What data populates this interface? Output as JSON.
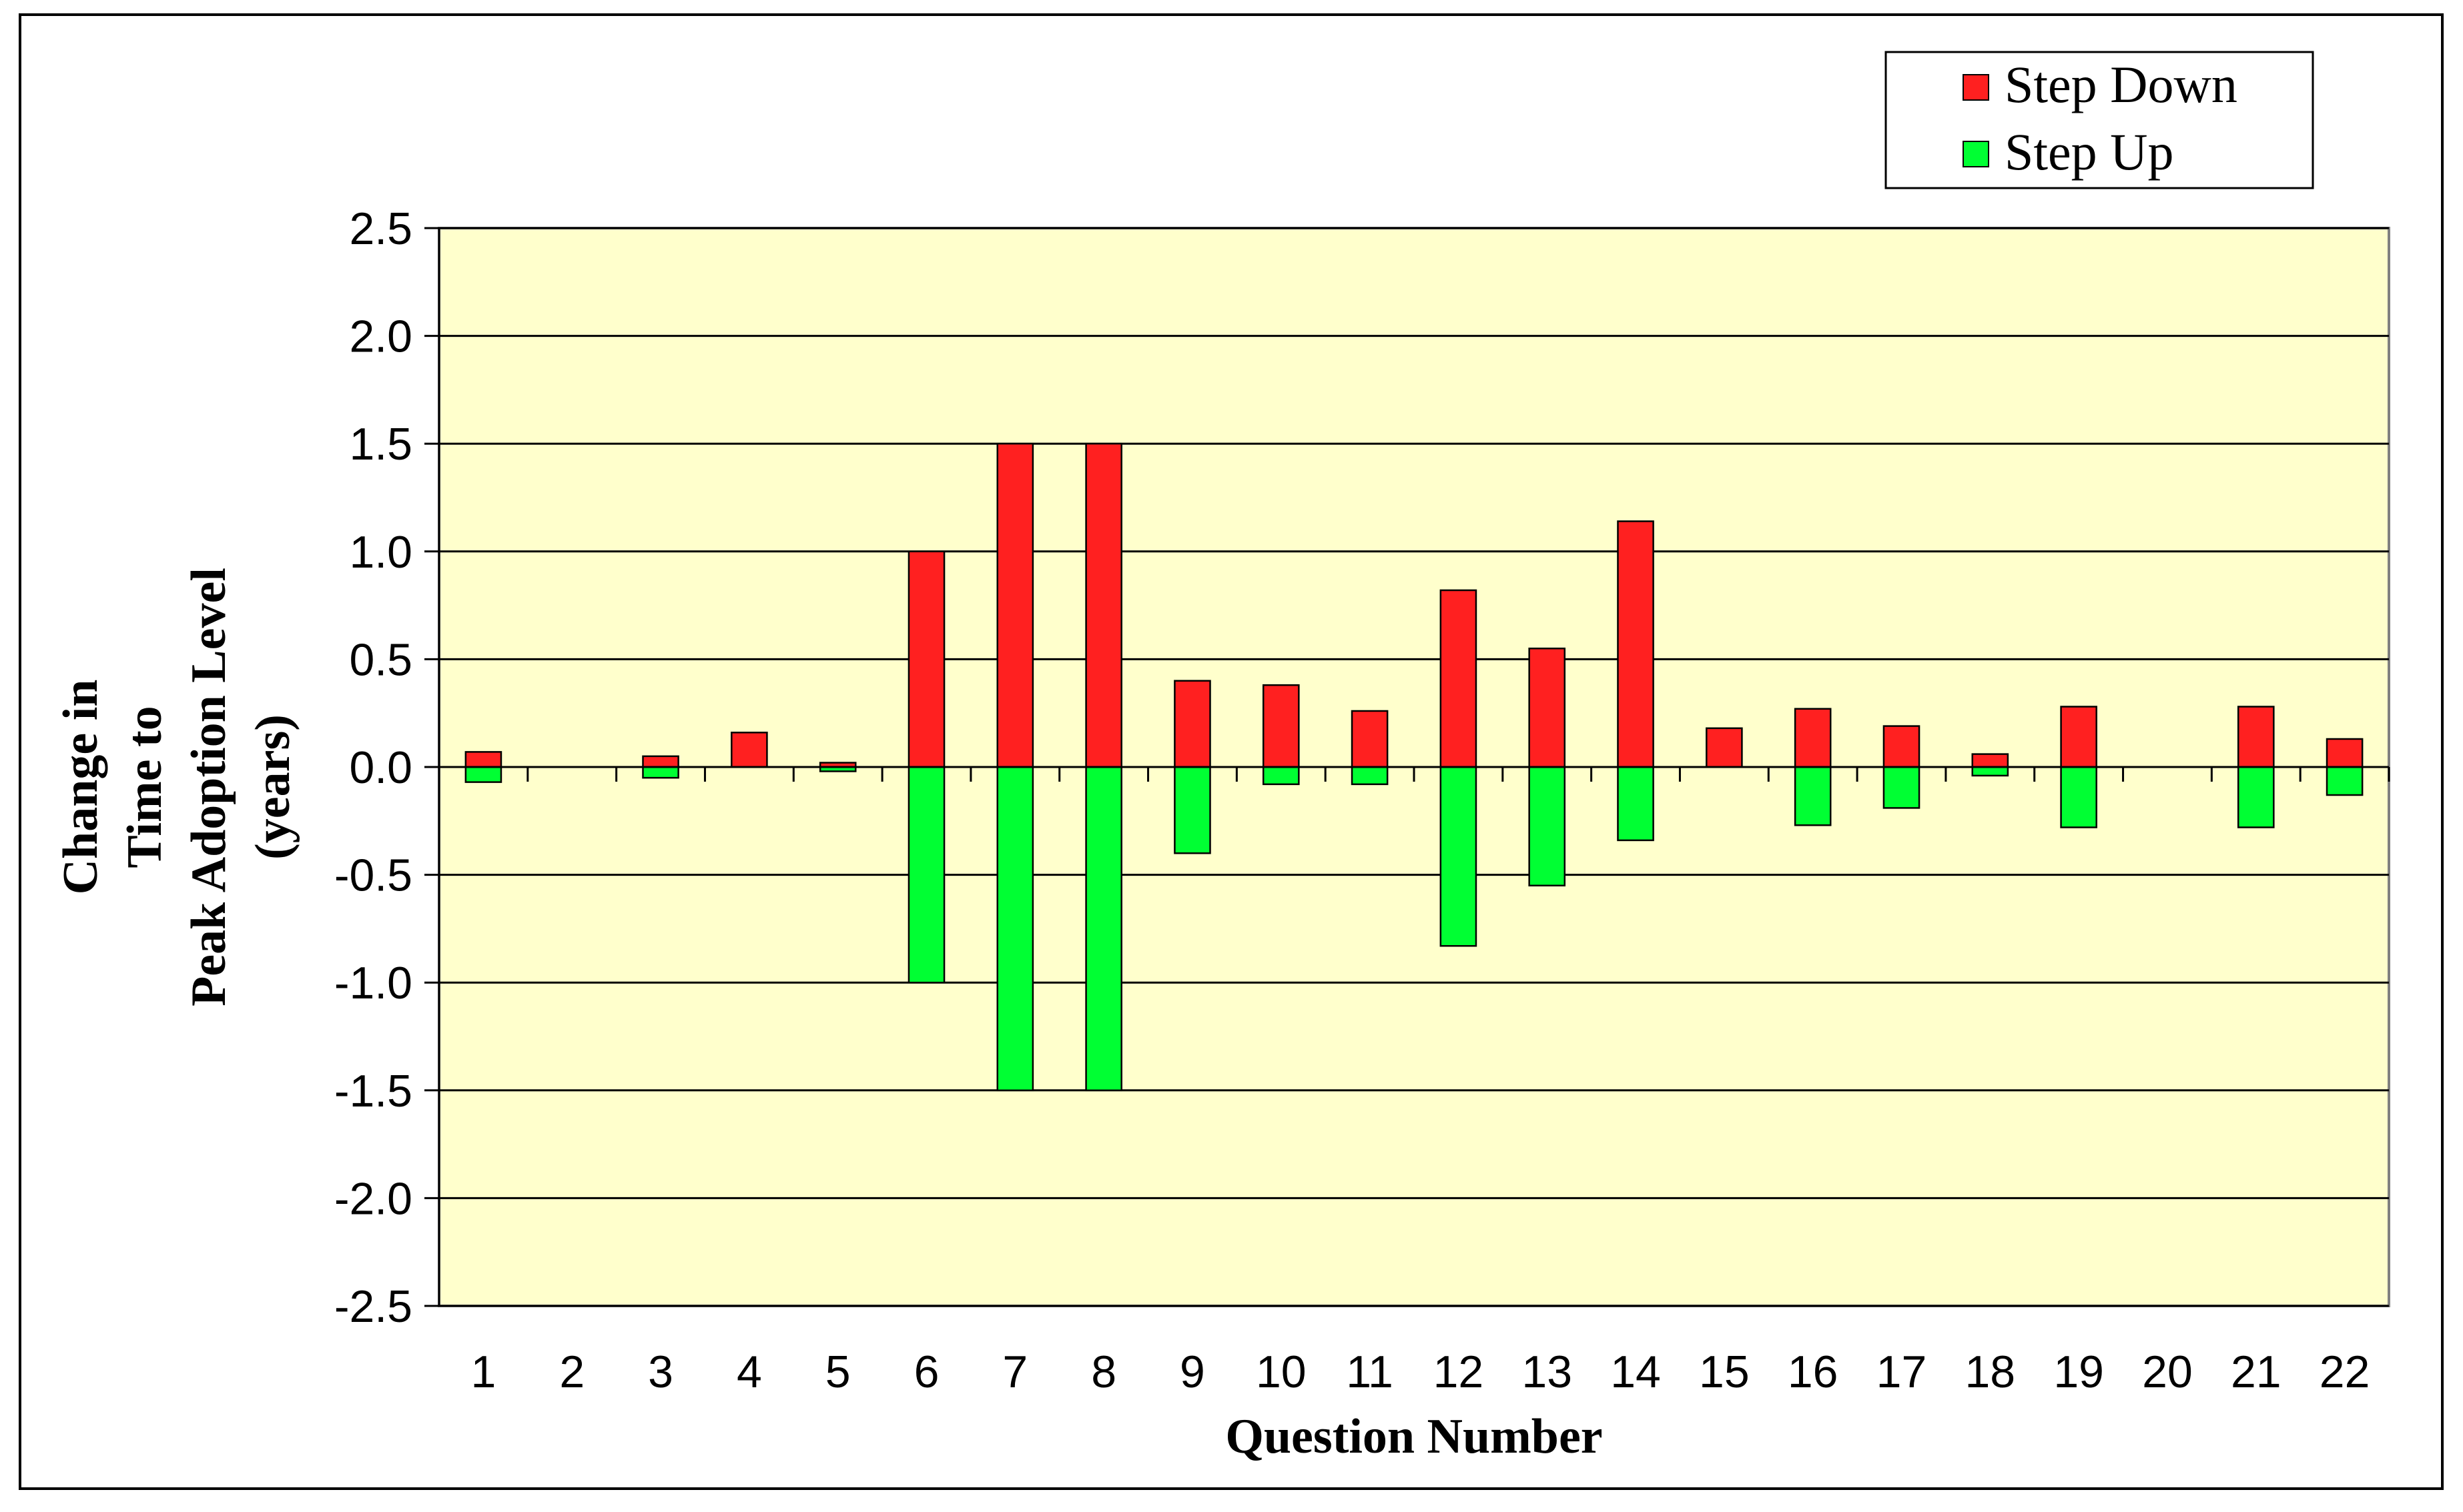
{
  "chart_data": {
    "type": "bar",
    "title": "",
    "xlabel": "Question Number",
    "ylabel_lines": [
      "Change in",
      "Time to",
      "Peak Adoption Level",
      "(years)"
    ],
    "ylim": [
      -2.5,
      2.5
    ],
    "yticks": [
      2.5,
      2.0,
      1.5,
      1.0,
      0.5,
      0.0,
      -0.5,
      -1.0,
      -1.5,
      -2.0,
      -2.5
    ],
    "ytick_labels": [
      "2.5",
      "2.0",
      "1.5",
      "1.0",
      "0.5",
      "0.0",
      "-0.5",
      "-1.0",
      "-1.5",
      "-2.0",
      "-2.5"
    ],
    "grid": true,
    "legend_position": "top-right",
    "plot_background": "#ffffcc",
    "categories": [
      "1",
      "2",
      "3",
      "4",
      "5",
      "6",
      "7",
      "8",
      "9",
      "10",
      "11",
      "12",
      "13",
      "14",
      "15",
      "16",
      "17",
      "18",
      "19",
      "20",
      "21",
      "22"
    ],
    "series": [
      {
        "name": "Step Down",
        "color": "#ff2020",
        "values": [
          0.07,
          0,
          0.05,
          0.16,
          0.02,
          1.0,
          1.5,
          1.5,
          0.4,
          0.38,
          0.26,
          0.82,
          0.55,
          1.14,
          0.18,
          0.27,
          0.19,
          0.06,
          0.28,
          0,
          0.28,
          0.13
        ]
      },
      {
        "name": "Step Up",
        "color": "#00ff33",
        "values": [
          -0.07,
          0,
          -0.05,
          0,
          -0.02,
          -1.0,
          -1.5,
          -1.5,
          -0.4,
          -0.08,
          -0.08,
          -0.83,
          -0.55,
          -0.34,
          0,
          -0.27,
          -0.19,
          -0.04,
          -0.28,
          0,
          -0.28,
          -0.13
        ]
      }
    ]
  }
}
